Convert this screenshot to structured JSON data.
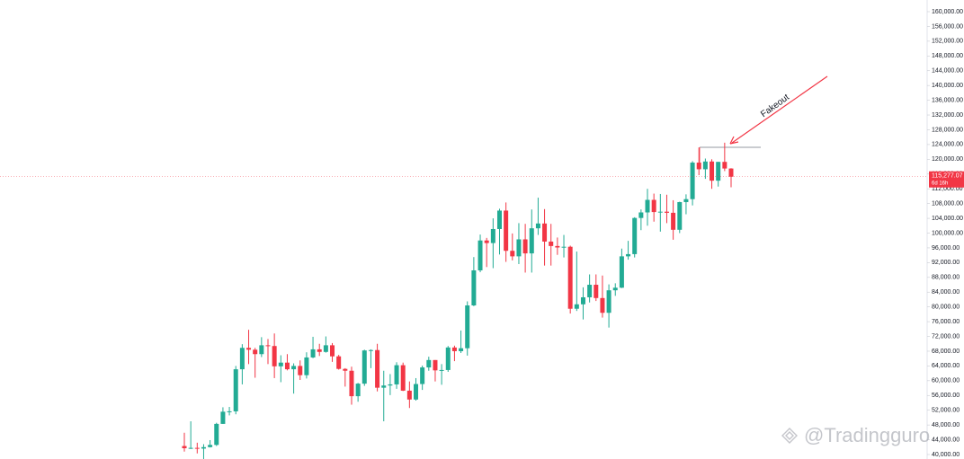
{
  "chart_data": {
    "type": "candlestick",
    "up_color": "#22ab94",
    "down_color": "#f23645",
    "ylim": [
      40000,
      160000
    ],
    "yticks": [
      {
        "value": 40000,
        "label": "40,000.00"
      },
      {
        "value": 44000,
        "label": "44,000.00"
      },
      {
        "value": 48000,
        "label": "48,000.00"
      },
      {
        "value": 52000,
        "label": "52,000.00"
      },
      {
        "value": 56000,
        "label": "56,000.00"
      },
      {
        "value": 60000,
        "label": "60,000.00"
      },
      {
        "value": 64000,
        "label": "64,000.00"
      },
      {
        "value": 68000,
        "label": "68,000.00"
      },
      {
        "value": 72000,
        "label": "72,000.00"
      },
      {
        "value": 76000,
        "label": "76,000.00"
      },
      {
        "value": 80000,
        "label": "80,000.00"
      },
      {
        "value": 84000,
        "label": "84,000.00"
      },
      {
        "value": 88000,
        "label": "88,000.00"
      },
      {
        "value": 92000,
        "label": "92,000.00"
      },
      {
        "value": 96000,
        "label": "96,000.00"
      },
      {
        "value": 100000,
        "label": "100,000.00"
      },
      {
        "value": 104000,
        "label": "104,000.00"
      },
      {
        "value": 108000,
        "label": "108,000.00"
      },
      {
        "value": 112000,
        "label": "112,000.00"
      },
      {
        "value": 116000,
        "label": "116,000.00"
      },
      {
        "value": 120000,
        "label": "120,000.00"
      },
      {
        "value": 124000,
        "label": "124,000.00"
      },
      {
        "value": 128000,
        "label": "128,000.00"
      },
      {
        "value": 132000,
        "label": "132,000.00"
      },
      {
        "value": 136000,
        "label": "136,000.00"
      },
      {
        "value": 140000,
        "label": "140,000.00"
      },
      {
        "value": 144000,
        "label": "144,000.00"
      },
      {
        "value": 148000,
        "label": "148,000.00"
      },
      {
        "value": 152000,
        "label": "152,000.00"
      },
      {
        "value": 156000,
        "label": "156,000.00"
      },
      {
        "value": 160000,
        "label": "160,000.00"
      }
    ],
    "grid": false,
    "open": [
      42300,
      41700,
      41800,
      41600,
      42000,
      42600,
      48300,
      51600,
      51700,
      63100,
      68900,
      68400,
      67200,
      69600,
      69400,
      63900,
      64900,
      63100,
      64000,
      61500,
      66300,
      68500,
      67800,
      69600,
      66600,
      63200,
      62700,
      55800,
      59200,
      68200,
      68300,
      58100,
      58700,
      59000,
      64200,
      57300,
      54900,
      59100,
      63600,
      65600,
      62800,
      62900,
      69000,
      68000,
      68800,
      80400,
      89900,
      98000,
      97300,
      101100,
      106100,
      95200,
      93700,
      98300,
      94500,
      101300,
      102600,
      97700,
      96500,
      96100,
      96300,
      79500,
      80700,
      82600,
      86000,
      82400,
      78400,
      84500,
      85200,
      93700,
      94300,
      104100,
      105600,
      109000,
      105700,
      105800,
      105500,
      100900,
      108400,
      109200,
      119100,
      117300,
      119400,
      114200,
      119300,
      117500
    ],
    "high": [
      45900,
      49000,
      43200,
      42800,
      43900,
      48600,
      52800,
      52900,
      64000,
      69900,
      73800,
      68900,
      71800,
      71300,
      72800,
      66900,
      67200,
      64700,
      65500,
      67700,
      71900,
      70000,
      72000,
      70200,
      67000,
      63400,
      63800,
      59400,
      68400,
      68500,
      70000,
      62700,
      61800,
      65000,
      64900,
      59800,
      60700,
      64100,
      66500,
      65600,
      64500,
      69400,
      69500,
      73600,
      81500,
      93500,
      99600,
      98700,
      104000,
      106600,
      108300,
      99900,
      102700,
      102500,
      106400,
      109600,
      106500,
      102500,
      98800,
      99500,
      96600,
      95000,
      85300,
      88800,
      88800,
      88500,
      86100,
      86400,
      95800,
      97900,
      104300,
      106400,
      112000,
      110700,
      110600,
      110400,
      108900,
      108500,
      110500,
      119500,
      123200,
      120200,
      120000,
      119300,
      124500,
      117600
    ],
    "low": [
      40800,
      41500,
      40300,
      38500,
      41900,
      42300,
      48300,
      50600,
      50900,
      59000,
      64500,
      60800,
      66400,
      64500,
      60700,
      59600,
      62800,
      56500,
      60200,
      60600,
      66100,
      66700,
      67600,
      65100,
      63000,
      58400,
      53500,
      54300,
      58600,
      63400,
      57100,
      49000,
      56100,
      57800,
      57200,
      52600,
      54600,
      57500,
      62700,
      59800,
      58900,
      62400,
      65300,
      67500,
      66800,
      80200,
      89400,
      90800,
      90500,
      94200,
      92200,
      92600,
      91600,
      89300,
      89300,
      99500,
      91200,
      91200,
      94100,
      93400,
      78200,
      78900,
      76600,
      81200,
      81600,
      77100,
      74400,
      83000,
      85100,
      92800,
      93400,
      100800,
      102000,
      103100,
      100400,
      102700,
      98200,
      100000,
      105100,
      107500,
      115700,
      114700,
      112000,
      112600,
      116800,
      112400
    ],
    "close": [
      41700,
      41800,
      41600,
      42000,
      42600,
      48300,
      51600,
      51700,
      63100,
      68900,
      68400,
      67200,
      69600,
      69400,
      63900,
      64900,
      63100,
      64000,
      61500,
      66300,
      68500,
      67800,
      69600,
      66600,
      63200,
      62700,
      55800,
      59200,
      68200,
      68300,
      58100,
      58700,
      59000,
      64200,
      57300,
      54900,
      59100,
      63600,
      65600,
      62800,
      62900,
      69000,
      68000,
      68800,
      80400,
      89900,
      98000,
      97300,
      101100,
      106100,
      95200,
      93700,
      98300,
      94500,
      101300,
      102600,
      97700,
      96500,
      96100,
      96300,
      79500,
      80700,
      82600,
      86000,
      82400,
      78400,
      84500,
      85200,
      93700,
      94300,
      104100,
      105600,
      109000,
      105700,
      105800,
      105500,
      100900,
      108400,
      109200,
      119100,
      117300,
      119400,
      114200,
      119300,
      117500,
      115277.07
    ],
    "price_label": {
      "value": 115277.07,
      "label": "115,277.07"
    },
    "countdown": "6d 16h",
    "annotation": "Fakeout",
    "watermark": "@Tradingguro"
  }
}
